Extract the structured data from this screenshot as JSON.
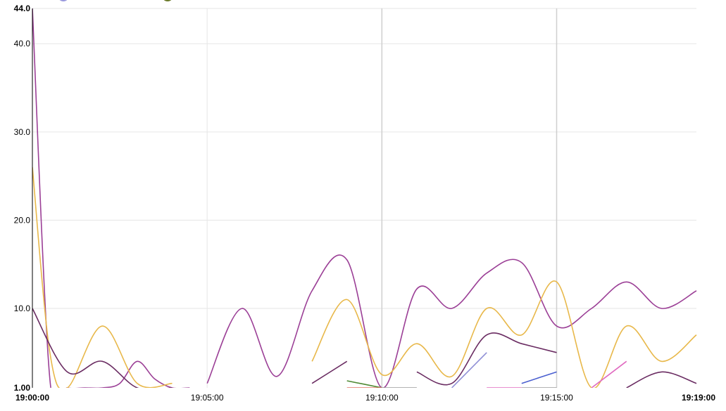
{
  "chart_data": {
    "type": "line",
    "x_ticks": [
      {
        "label": "19:00:00",
        "minute": 0,
        "bold": true
      },
      {
        "label": "19:05:00",
        "minute": 5,
        "bold": false
      },
      {
        "label": "19:10:00",
        "minute": 10,
        "bold": false
      },
      {
        "label": "19:15:00",
        "minute": 15,
        "bold": false
      },
      {
        "label": "19:19:00",
        "minute": 19,
        "bold": true
      }
    ],
    "y_ticks": [
      {
        "label": "1.00",
        "value": 1,
        "bold": true
      },
      {
        "label": "10.0",
        "value": 10,
        "bold": false
      },
      {
        "label": "20.0",
        "value": 20,
        "bold": false
      },
      {
        "label": "30.0",
        "value": 30,
        "bold": false
      },
      {
        "label": "40.0",
        "value": 40,
        "bold": false
      },
      {
        "label": "44.0",
        "value": 44,
        "bold": true
      }
    ],
    "xlim": [
      0,
      19
    ],
    "ylim": [
      1,
      44
    ],
    "grid": true,
    "legend_colors": [
      "#9999dd",
      "#6b7a2a"
    ],
    "series": [
      {
        "color": "#9b3f96",
        "segments": [
          [
            [
              0,
              44
            ],
            [
              0.5,
              2
            ],
            [
              1,
              1
            ],
            [
              1.5,
              1
            ],
            [
              2,
              1
            ],
            [
              2.5,
              1.5
            ],
            [
              3,
              4
            ],
            [
              3.5,
              2
            ],
            [
              4,
              1
            ],
            [
              4.5,
              1
            ]
          ],
          [
            [
              5,
              1.5
            ],
            [
              6,
              10
            ],
            [
              7,
              2.3
            ],
            [
              8,
              12
            ],
            [
              9,
              15.5
            ],
            [
              10,
              1
            ],
            [
              11,
              12.2
            ],
            [
              12,
              10
            ],
            [
              13,
              14
            ],
            [
              14,
              15.2
            ],
            [
              15,
              8
            ],
            [
              16,
              10
            ],
            [
              17,
              13
            ],
            [
              18,
              10
            ],
            [
              19,
              12
            ]
          ]
        ]
      },
      {
        "color": "#e8b84a",
        "segments": [
          [
            [
              0,
              26
            ],
            [
              0.5,
              5
            ],
            [
              1,
              1
            ],
            [
              2,
              8
            ],
            [
              3,
              1.5
            ],
            [
              4,
              1.5
            ]
          ],
          [
            [
              8,
              4
            ],
            [
              9,
              11
            ],
            [
              10,
              2.5
            ],
            [
              11,
              6
            ],
            [
              12,
              2.3
            ],
            [
              13,
              10
            ],
            [
              14,
              7
            ],
            [
              15,
              13
            ],
            [
              16,
              1
            ],
            [
              17,
              8
            ],
            [
              18,
              4
            ],
            [
              19,
              7
            ]
          ]
        ]
      },
      {
        "color": "#6a2c62",
        "segments": [
          [
            [
              0,
              10
            ],
            [
              1,
              2.8
            ],
            [
              2,
              4
            ],
            [
              3,
              1
            ],
            [
              4,
              1
            ]
          ],
          [
            [
              8,
              1.5
            ],
            [
              9,
              4
            ]
          ],
          [
            [
              11,
              2.8
            ],
            [
              12,
              1.5
            ],
            [
              13,
              7
            ],
            [
              14,
              6
            ],
            [
              15,
              5
            ]
          ],
          [
            [
              17,
              1
            ],
            [
              18,
              2.8
            ],
            [
              19,
              1.5
            ]
          ]
        ]
      },
      {
        "color": "#8f8fd6",
        "segments": [
          [
            [
              12,
              1
            ],
            [
              13,
              5
            ]
          ]
        ]
      },
      {
        "color": "#4a5fd0",
        "segments": [
          [
            [
              14,
              1.5
            ],
            [
              15,
              2.8
            ]
          ]
        ]
      },
      {
        "color": "#e06ac0",
        "segments": [
          [
            [
              13,
              1
            ],
            [
              14,
              1
            ]
          ],
          [
            [
              16,
              1
            ],
            [
              17,
              4
            ]
          ]
        ]
      },
      {
        "color": "#4f8a34",
        "segments": [
          [
            [
              9,
              1.8
            ],
            [
              10,
              1
            ]
          ]
        ]
      },
      {
        "color": "#e07060",
        "segments": [
          [
            [
              9,
              1
            ],
            [
              10,
              1
            ]
          ]
        ]
      },
      {
        "color": "#9a9a9a",
        "segments": [
          [
            [
              10,
              1
            ],
            [
              11,
              1
            ]
          ],
          [
            [
              14,
              1
            ],
            [
              15,
              1
            ]
          ]
        ]
      }
    ]
  }
}
